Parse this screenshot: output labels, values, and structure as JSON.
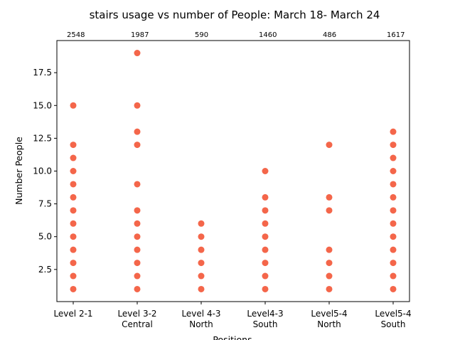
{
  "chart_data": {
    "type": "scatter",
    "title": "stairs usage vs number of People:  March 18- March 24",
    "xlabel": "Positions",
    "ylabel": "Number People",
    "categories": [
      [
        "Level 2-1"
      ],
      [
        "Level 3-2",
        "Central"
      ],
      [
        "Level 4-3",
        "North"
      ],
      [
        "Level4-3",
        "South"
      ],
      [
        "Level5-4",
        "North"
      ],
      [
        "Level5-4",
        "South"
      ]
    ],
    "top_labels": [
      "2548",
      "1987",
      "590",
      "1460",
      "486",
      "1617"
    ],
    "ylim": [
      0.05,
      19.95
    ],
    "yticks": [
      "2.5",
      "5.0",
      "7.5",
      "10.0",
      "12.5",
      "15.0",
      "17.5"
    ],
    "ytick_values": [
      2.5,
      5.0,
      7.5,
      10.0,
      12.5,
      15.0,
      17.5
    ],
    "series": [
      {
        "color": "#f4664a",
        "points": [
          [
            0,
            [
              1,
              2,
              3,
              4,
              5,
              6,
              7,
              8,
              9,
              10,
              11,
              12,
              15
            ]
          ],
          [
            1,
            [
              1,
              2,
              3,
              4,
              5,
              6,
              7,
              9,
              12,
              13,
              15,
              19
            ]
          ],
          [
            2,
            [
              1,
              2,
              3,
              4,
              5,
              6
            ]
          ],
          [
            3,
            [
              1,
              2,
              3,
              4,
              5,
              6,
              7,
              8,
              10
            ]
          ],
          [
            4,
            [
              1,
              2,
              3,
              4,
              7,
              8,
              12
            ]
          ],
          [
            5,
            [
              1,
              2,
              3,
              4,
              5,
              6,
              7,
              8,
              9,
              10,
              11,
              12,
              13
            ]
          ]
        ]
      }
    ],
    "grid": false
  }
}
